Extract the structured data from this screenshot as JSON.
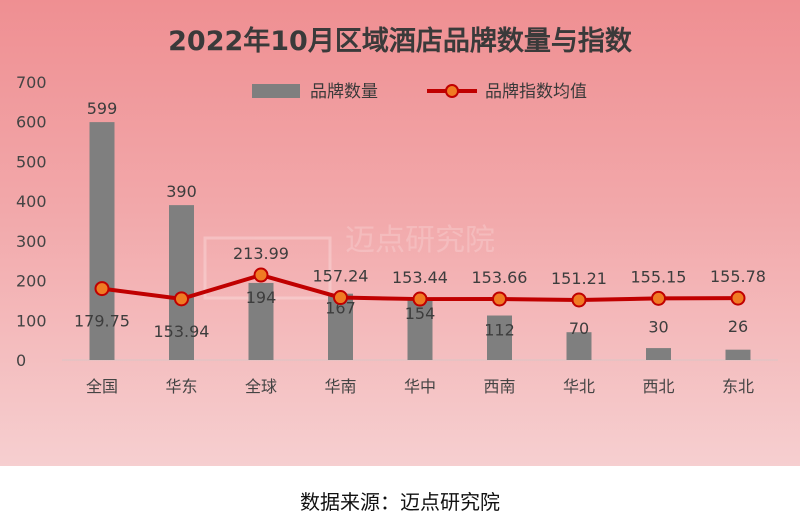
{
  "chart_data": {
    "type": "bar",
    "title": "2022年10月区域酒店品牌数量与指数",
    "categories": [
      "全国",
      "华东",
      "全球",
      "华南",
      "华中",
      "西南",
      "华北",
      "西北",
      "东北"
    ],
    "series": [
      {
        "name": "品牌数量",
        "type": "bar",
        "color": "#7f7f7f",
        "values": [
          599,
          390,
          194,
          167,
          154,
          112,
          70,
          30,
          26
        ]
      },
      {
        "name": "品牌指数均值",
        "type": "line",
        "color": "#c00000",
        "marker_color": "#f07b23",
        "values": [
          179.75,
          153.94,
          213.99,
          157.24,
          153.44,
          153.66,
          151.21,
          155.15,
          155.78
        ],
        "labels": [
          "179.75",
          "153.94",
          "213.99",
          "157.24",
          "153.44",
          "153.66",
          "151.21",
          "155.15",
          "155.78"
        ]
      }
    ],
    "ylim": [
      0,
      700
    ],
    "yticks": [
      0,
      100,
      200,
      300,
      400,
      500,
      600,
      700
    ],
    "legend_position": "top",
    "grid": false
  },
  "watermark_text": "迈点研究院",
  "source_text": "数据来源：迈点研究院"
}
